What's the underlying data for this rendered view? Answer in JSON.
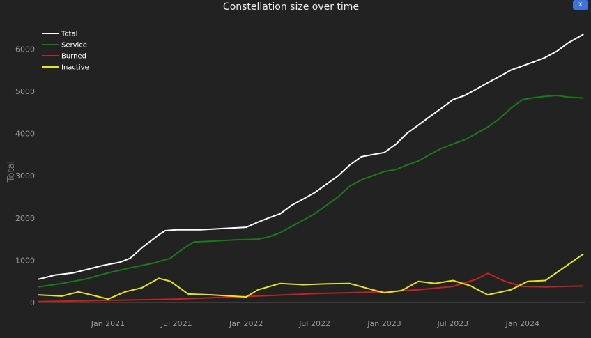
{
  "header": {
    "title": "Constellation size over time",
    "close_label": "x"
  },
  "chart_data": {
    "type": "line",
    "title": "Constellation size over time",
    "xlabel": "",
    "ylabel": "Total",
    "x_ticks": [
      "Jan 2021",
      "Jul 2021",
      "Jan 2022",
      "Jul 2022",
      "Jan 2023",
      "Jul 2023",
      "Jan 2024"
    ],
    "y_ticks": [
      0,
      1000,
      2000,
      3000,
      4000,
      5000,
      6000
    ],
    "ylim": [
      0,
      6500
    ],
    "xlim": [
      "2020-07-01",
      "2024-06-15"
    ],
    "grid": false,
    "legend_position": "top-left",
    "series": [
      {
        "name": "Total",
        "color": "#ffffff",
        "points": [
          [
            "2020-07-01",
            550
          ],
          [
            "2020-08-15",
            650
          ],
          [
            "2020-10-01",
            700
          ],
          [
            "2020-11-15",
            800
          ],
          [
            "2020-12-20",
            880
          ],
          [
            "2021-02-01",
            950
          ],
          [
            "2021-03-01",
            1050
          ],
          [
            "2021-04-01",
            1300
          ],
          [
            "2021-05-15",
            1600
          ],
          [
            "2021-06-01",
            1700
          ],
          [
            "2021-07-01",
            1720
          ],
          [
            "2021-09-01",
            1720
          ],
          [
            "2021-11-01",
            1750
          ],
          [
            "2022-01-01",
            1780
          ],
          [
            "2022-02-01",
            1900
          ],
          [
            "2022-03-01",
            2000
          ],
          [
            "2022-04-01",
            2100
          ],
          [
            "2022-05-01",
            2300
          ],
          [
            "2022-06-01",
            2450
          ],
          [
            "2022-07-01",
            2600
          ],
          [
            "2022-08-01",
            2800
          ],
          [
            "2022-09-01",
            3000
          ],
          [
            "2022-10-01",
            3250
          ],
          [
            "2022-11-01",
            3450
          ],
          [
            "2022-12-01",
            3500
          ],
          [
            "2023-01-01",
            3550
          ],
          [
            "2023-02-01",
            3750
          ],
          [
            "2023-03-01",
            4000
          ],
          [
            "2023-04-01",
            4200
          ],
          [
            "2023-05-01",
            4400
          ],
          [
            "2023-06-01",
            4600
          ],
          [
            "2023-07-01",
            4800
          ],
          [
            "2023-08-01",
            4900
          ],
          [
            "2023-09-01",
            5050
          ],
          [
            "2023-10-01",
            5200
          ],
          [
            "2023-11-01",
            5350
          ],
          [
            "2023-12-01",
            5500
          ],
          [
            "2024-01-01",
            5600
          ],
          [
            "2024-02-01",
            5700
          ],
          [
            "2024-03-01",
            5800
          ],
          [
            "2024-04-01",
            5950
          ],
          [
            "2024-05-01",
            6150
          ],
          [
            "2024-06-10",
            6350
          ]
        ]
      },
      {
        "name": "Service",
        "color": "#1a7a1a",
        "points": [
          [
            "2020-07-01",
            370
          ],
          [
            "2020-09-01",
            450
          ],
          [
            "2020-11-01",
            550
          ],
          [
            "2021-01-01",
            700
          ],
          [
            "2021-03-01",
            820
          ],
          [
            "2021-05-01",
            930
          ],
          [
            "2021-06-15",
            1050
          ],
          [
            "2021-07-15",
            1250
          ],
          [
            "2021-08-15",
            1430
          ],
          [
            "2021-10-01",
            1450
          ],
          [
            "2021-12-01",
            1480
          ],
          [
            "2022-01-01",
            1490
          ],
          [
            "2022-02-01",
            1500
          ],
          [
            "2022-03-01",
            1550
          ],
          [
            "2022-04-01",
            1650
          ],
          [
            "2022-05-01",
            1800
          ],
          [
            "2022-06-01",
            1950
          ],
          [
            "2022-07-01",
            2100
          ],
          [
            "2022-08-01",
            2300
          ],
          [
            "2022-09-01",
            2500
          ],
          [
            "2022-10-01",
            2750
          ],
          [
            "2022-11-01",
            2900
          ],
          [
            "2022-12-01",
            3000
          ],
          [
            "2023-01-01",
            3100
          ],
          [
            "2023-02-01",
            3150
          ],
          [
            "2023-03-01",
            3250
          ],
          [
            "2023-04-01",
            3350
          ],
          [
            "2023-05-01",
            3500
          ],
          [
            "2023-06-01",
            3650
          ],
          [
            "2023-07-01",
            3750
          ],
          [
            "2023-08-01",
            3850
          ],
          [
            "2023-09-01",
            4000
          ],
          [
            "2023-10-01",
            4150
          ],
          [
            "2023-11-01",
            4350
          ],
          [
            "2023-12-01",
            4600
          ],
          [
            "2024-01-01",
            4800
          ],
          [
            "2024-02-01",
            4850
          ],
          [
            "2024-03-01",
            4880
          ],
          [
            "2024-04-01",
            4900
          ],
          [
            "2024-05-01",
            4860
          ],
          [
            "2024-06-10",
            4840
          ]
        ]
      },
      {
        "name": "Burned",
        "color": "#cc1f1f",
        "points": [
          [
            "2020-07-01",
            20
          ],
          [
            "2021-01-01",
            50
          ],
          [
            "2021-07-01",
            80
          ],
          [
            "2022-01-01",
            140
          ],
          [
            "2022-07-01",
            210
          ],
          [
            "2023-01-01",
            250
          ],
          [
            "2023-04-01",
            300
          ],
          [
            "2023-07-01",
            380
          ],
          [
            "2023-09-01",
            550
          ],
          [
            "2023-10-01",
            690
          ],
          [
            "2023-11-15",
            500
          ],
          [
            "2024-01-01",
            380
          ],
          [
            "2024-03-01",
            370
          ],
          [
            "2024-06-10",
            390
          ]
        ]
      },
      {
        "name": "Inactive",
        "color": "#e6e61a",
        "points": [
          [
            "2020-07-01",
            180
          ],
          [
            "2020-09-01",
            150
          ],
          [
            "2020-10-15",
            250
          ],
          [
            "2020-12-01",
            150
          ],
          [
            "2021-01-01",
            80
          ],
          [
            "2021-02-15",
            250
          ],
          [
            "2021-04-01",
            350
          ],
          [
            "2021-05-15",
            570
          ],
          [
            "2021-06-15",
            500
          ],
          [
            "2021-08-01",
            200
          ],
          [
            "2021-10-01",
            180
          ],
          [
            "2022-01-01",
            130
          ],
          [
            "2022-02-01",
            300
          ],
          [
            "2022-04-01",
            450
          ],
          [
            "2022-06-01",
            420
          ],
          [
            "2022-08-01",
            440
          ],
          [
            "2022-10-01",
            450
          ],
          [
            "2022-12-01",
            300
          ],
          [
            "2023-01-01",
            230
          ],
          [
            "2023-02-15",
            280
          ],
          [
            "2023-04-01",
            500
          ],
          [
            "2023-05-15",
            450
          ],
          [
            "2023-07-01",
            520
          ],
          [
            "2023-08-15",
            400
          ],
          [
            "2023-10-01",
            180
          ],
          [
            "2023-12-01",
            300
          ],
          [
            "2024-01-15",
            500
          ],
          [
            "2024-03-01",
            520
          ],
          [
            "2024-04-15",
            800
          ],
          [
            "2024-06-10",
            1150
          ]
        ]
      }
    ]
  }
}
